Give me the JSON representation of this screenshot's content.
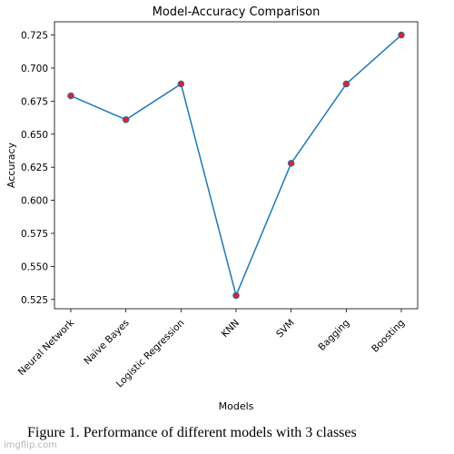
{
  "chart_data": {
    "type": "line",
    "title": "Model-Accuracy Comparison",
    "xlabel": "Models",
    "ylabel": "Accuracy",
    "categories": [
      "Neural Network",
      "Naive Bayes",
      "Logistic Regression",
      "KNN",
      "SVM",
      "Bagging",
      "Boosting"
    ],
    "values": [
      0.679,
      0.661,
      0.688,
      0.528,
      0.628,
      0.688,
      0.725
    ],
    "ylim": [
      0.518,
      0.735
    ],
    "yticks": [
      0.525,
      0.55,
      0.575,
      0.6,
      0.625,
      0.65,
      0.675,
      0.7,
      0.725
    ],
    "ytick_labels": [
      "0.525",
      "0.550",
      "0.575",
      "0.600",
      "0.625",
      "0.650",
      "0.675",
      "0.700",
      "0.725"
    ],
    "grid": false,
    "colors": {
      "line": "#1f77b4",
      "marker_fill": "#d62728",
      "marker_edge": "#1f77b4"
    }
  },
  "caption": "Figure 1. Performance of different models with 3 classes",
  "watermark": "imgflip.com"
}
